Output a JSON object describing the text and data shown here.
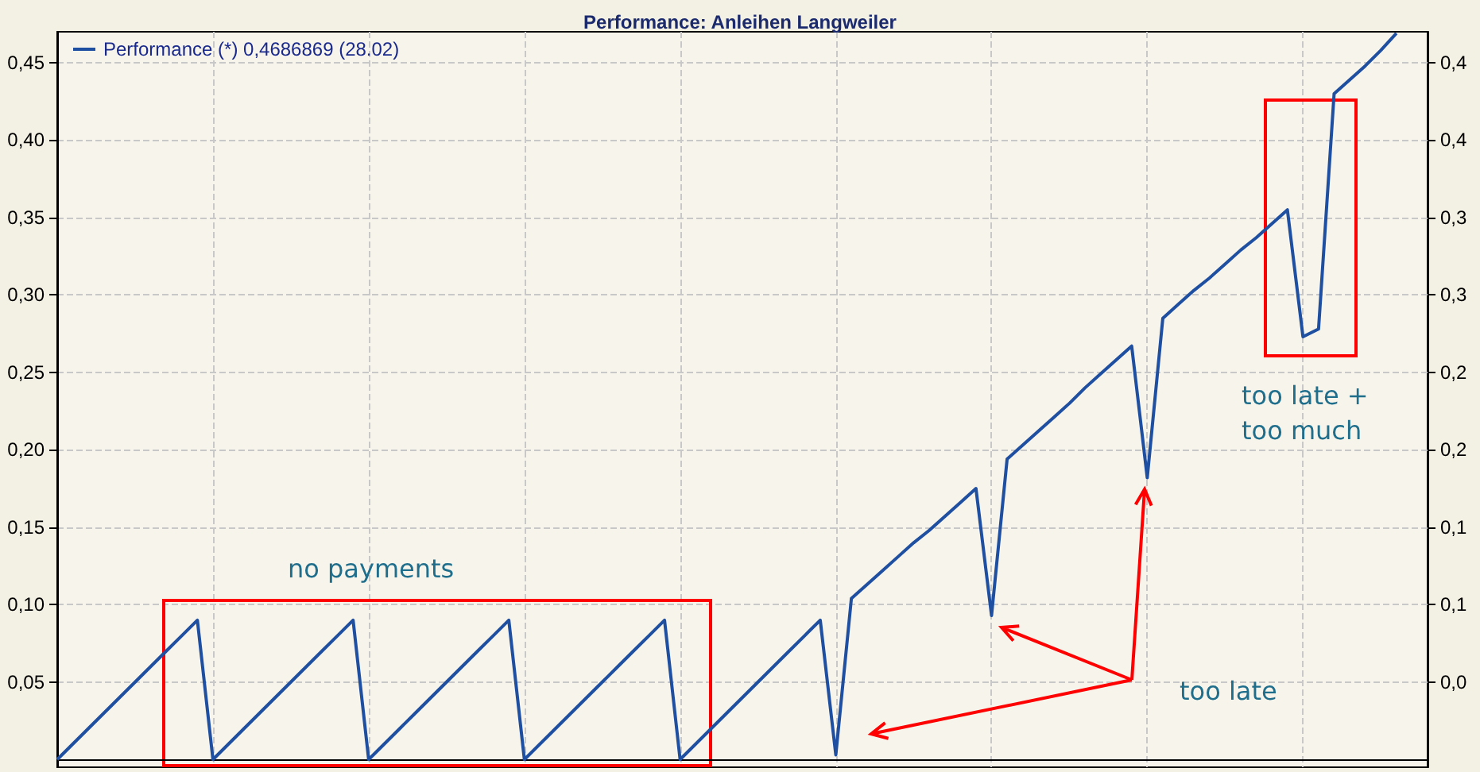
{
  "chart_data": {
    "type": "line",
    "title": "Performance: Anleihen Langweiler",
    "categories": [
      null,
      null,
      null,
      null,
      null,
      null,
      null,
      null,
      null,
      null,
      null,
      null,
      null,
      null,
      null,
      null,
      null,
      null,
      null,
      null,
      null,
      null,
      null,
      null,
      null,
      null,
      null,
      null,
      null,
      null,
      null,
      null,
      null,
      null,
      null,
      null,
      null,
      null,
      null,
      null,
      null,
      null,
      null,
      null,
      null,
      null,
      null,
      null,
      null,
      null,
      null,
      null,
      null,
      null,
      null,
      null,
      null,
      null,
      null,
      null,
      null,
      null,
      null,
      null,
      null,
      null,
      null,
      null,
      null,
      null,
      null,
      null,
      null,
      null,
      null,
      null,
      null,
      null,
      null,
      null,
      null,
      null,
      null,
      null,
      null,
      null,
      null,
      null,
      null
    ],
    "series": [
      {
        "name": "Performance (*) 0,4686869 (28.02)",
        "color": "#1f4fa0",
        "values": [
          0,
          0.01,
          0.02,
          0.03,
          0.04,
          0.05,
          0.06,
          0.07,
          0.08,
          0.09,
          0,
          0.01,
          0.02,
          0.03,
          0.04,
          0.05,
          0.06,
          0.07,
          0.08,
          0.09,
          0,
          0.01,
          0.02,
          0.03,
          0.04,
          0.05,
          0.06,
          0.07,
          0.08,
          0.09,
          0,
          0.01,
          0.02,
          0.03,
          0.04,
          0.05,
          0.06,
          0.07,
          0.08,
          0.09,
          0,
          0.01,
          0.02,
          0.03,
          0.04,
          0.05,
          0.06,
          0.07,
          0.08,
          0.09,
          0.003,
          0.104,
          0.113,
          0.122,
          0.131,
          0.14,
          0.148,
          0.157,
          0.166,
          0.175,
          0.093,
          0.194,
          0.203,
          0.212,
          0.221,
          0.23,
          0.24,
          0.249,
          0.258,
          0.267,
          0.182,
          0.285,
          0.294,
          0.303,
          0.311,
          0.32,
          0.329,
          0.337,
          0.346,
          0.355,
          0.273,
          0.278,
          0.43,
          0.439,
          0.448,
          0.458,
          0.469,
          null,
          null
        ]
      }
    ],
    "ylim": [
      -0.005,
      0.47
    ],
    "yticks": [
      {
        "value": 0.05,
        "label": "0,05"
      },
      {
        "value": 0.1,
        "label": "0,10"
      },
      {
        "value": 0.15,
        "label": "0,15"
      },
      {
        "value": 0.2,
        "label": "0,20"
      },
      {
        "value": 0.25,
        "label": "0,25"
      },
      {
        "value": 0.3,
        "label": "0,30"
      },
      {
        "value": 0.35,
        "label": "0,35"
      },
      {
        "value": 0.4,
        "label": "0,40"
      },
      {
        "value": 0.45,
        "label": "0,45"
      }
    ],
    "y2lim": [
      -0.005,
      0.47
    ],
    "y2ticks": [
      {
        "value": 0.05,
        "label": "0,0"
      },
      {
        "value": 0.1,
        "label": "0,1"
      },
      {
        "value": 0.15,
        "label": "0,1"
      },
      {
        "value": 0.2,
        "label": "0,2"
      },
      {
        "value": 0.25,
        "label": "0,2"
      },
      {
        "value": 0.3,
        "label": "0,3"
      },
      {
        "value": 0.35,
        "label": "0,3"
      },
      {
        "value": 0.4,
        "label": "0,4"
      },
      {
        "value": 0.45,
        "label": "0,4"
      }
    ],
    "tick_labels": "y",
    "grid": true,
    "legend": "top left",
    "marker": "none",
    "line_style": "solid",
    "annotations": [
      "no payments",
      "too late",
      "too late +\ntoo much"
    ]
  }
}
